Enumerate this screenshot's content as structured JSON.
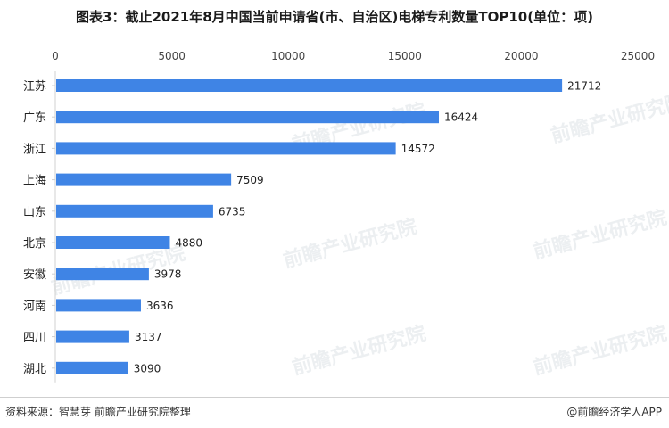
{
  "title": "图表3：截止2021年8月中国当前申请省(市、自治区)电梯专利数量TOP10(单位：项)",
  "source": "资料来源：智慧芽 前瞻产业研究院整理",
  "brand": "@前瞻经济学人APP",
  "watermark_text": "前瞻产业研究院",
  "colors": {
    "bar": "#3f84e5",
    "axis": "#d0d0d0"
  },
  "chart_data": {
    "type": "bar",
    "orientation": "horizontal",
    "categories": [
      "江苏",
      "广东",
      "浙江",
      "上海",
      "山东",
      "北京",
      "安徽",
      "河南",
      "四川",
      "湖北"
    ],
    "values": [
      21712,
      16424,
      14572,
      7509,
      6735,
      4880,
      3978,
      3636,
      3137,
      3090
    ],
    "xlim": [
      0,
      25000
    ],
    "xticks": [
      0,
      5000,
      10000,
      15000,
      20000,
      25000
    ],
    "xaxis_position": "top",
    "grid": false,
    "legend": "none"
  }
}
